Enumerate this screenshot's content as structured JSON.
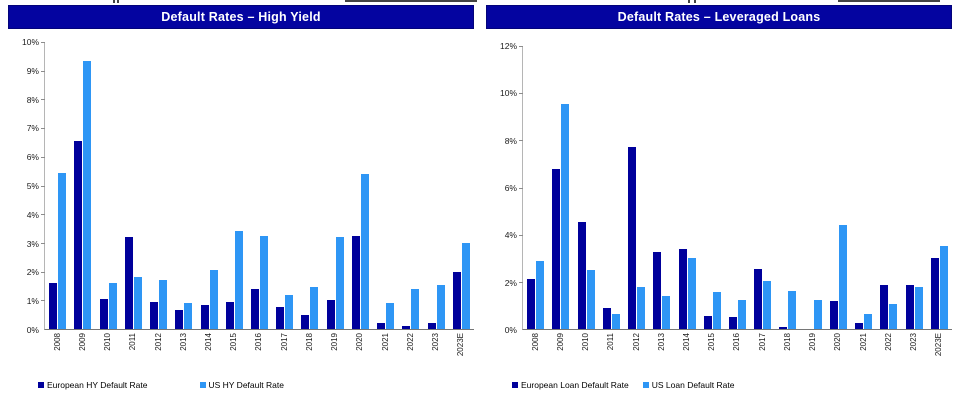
{
  "colors": {
    "header_bg": "#0404A0",
    "header_text": "#FFFFFF",
    "european_bar": "#00009B",
    "us_bar": "#2E96F5",
    "axis_line": "#8C8C8C",
    "tick_text": "#1A1A1A"
  },
  "chart_data": [
    {
      "type": "bar",
      "title": "Default Rates – High Yield",
      "categories": [
        "2008",
        "2009",
        "2010",
        "2011",
        "2012",
        "2013",
        "2014",
        "2015",
        "2016",
        "2017",
        "2018",
        "2019",
        "2020",
        "2021",
        "2022",
        "2023",
        "2023E"
      ],
      "series": [
        {
          "name": "European HY Default Rate",
          "color": "#00009B",
          "values": [
            1.6,
            6.55,
            1.05,
            3.2,
            0.95,
            0.65,
            0.85,
            0.95,
            1.4,
            0.75,
            0.5,
            1.0,
            3.25,
            0.2,
            0.1,
            0.2,
            2.0
          ]
        },
        {
          "name": "US HY Default Rate",
          "color": "#2E96F5",
          "values": [
            5.45,
            9.35,
            1.6,
            1.8,
            1.7,
            0.9,
            2.05,
            3.4,
            3.25,
            1.2,
            1.45,
            3.2,
            5.4,
            0.9,
            1.4,
            1.55,
            3.0
          ]
        }
      ],
      "xlabel": "",
      "ylabel": "",
      "ylim": [
        0,
        10
      ],
      "y_ticks": [
        {
          "value": 0,
          "label": "0%"
        },
        {
          "value": 1,
          "label": "1%"
        },
        {
          "value": 2,
          "label": "2%"
        },
        {
          "value": 3,
          "label": "3%"
        },
        {
          "value": 4,
          "label": "4%"
        },
        {
          "value": 5,
          "label": "5%"
        },
        {
          "value": 6,
          "label": "6%"
        },
        {
          "value": 7,
          "label": "7%"
        },
        {
          "value": 8,
          "label": "8%"
        },
        {
          "value": 9,
          "label": "9%"
        },
        {
          "value": 10,
          "label": "10%"
        }
      ],
      "grid": false,
      "legend_position": "bottom-left"
    },
    {
      "type": "bar",
      "title": "Default Rates – Leveraged Loans",
      "categories": [
        "2008",
        "2009",
        "2010",
        "2011",
        "2012",
        "2013",
        "2014",
        "2015",
        "2016",
        "2017",
        "2018",
        "2019",
        "2020",
        "2021",
        "2022",
        "2023",
        "2023E"
      ],
      "series": [
        {
          "name": "European Loan Default Rate",
          "color": "#00009B",
          "values": [
            2.1,
            6.8,
            4.55,
            0.9,
            7.7,
            3.25,
            3.4,
            0.55,
            0.5,
            2.55,
            0.1,
            0,
            1.2,
            0.25,
            1.85,
            1.85,
            3.0
          ]
        },
        {
          "name": "US Loan Default Rate",
          "color": "#2E96F5",
          "values": [
            2.9,
            9.55,
            2.5,
            0.65,
            1.8,
            1.4,
            3.0,
            1.55,
            1.25,
            2.05,
            1.6,
            1.25,
            4.4,
            0.65,
            1.05,
            1.8,
            3.5
          ]
        }
      ],
      "xlabel": "",
      "ylabel": "",
      "ylim": [
        0,
        12
      ],
      "y_ticks": [
        {
          "value": 0,
          "label": "0%"
        },
        {
          "value": 2,
          "label": "2%"
        },
        {
          "value": 4,
          "label": "4%"
        },
        {
          "value": 6,
          "label": "6%"
        },
        {
          "value": 8,
          "label": "8%"
        },
        {
          "value": 10,
          "label": "10%"
        },
        {
          "value": 12,
          "label": "12%"
        }
      ],
      "grid": false,
      "legend_position": "bottom-left"
    }
  ]
}
